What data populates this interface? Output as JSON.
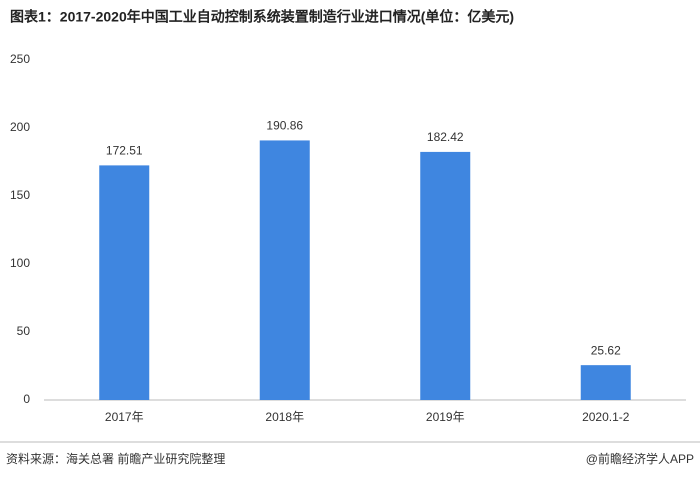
{
  "chart_data": {
    "type": "bar",
    "title": "图表1：2017-2020年中国工业自动控制系统装置制造行业进口情况(单位：亿美元)",
    "categories": [
      "2017年",
      "2018年",
      "2019年",
      "2020.1-2"
    ],
    "values": [
      172.51,
      190.86,
      182.42,
      25.62
    ],
    "color": "#3f86e0",
    "ylim": [
      0,
      250
    ],
    "yticks": [
      0,
      50,
      100,
      150,
      200,
      250
    ],
    "grid": false,
    "source": "资料来源：海关总署 前瞻产业研究院整理",
    "credit": "@前瞻经济学人APP"
  }
}
